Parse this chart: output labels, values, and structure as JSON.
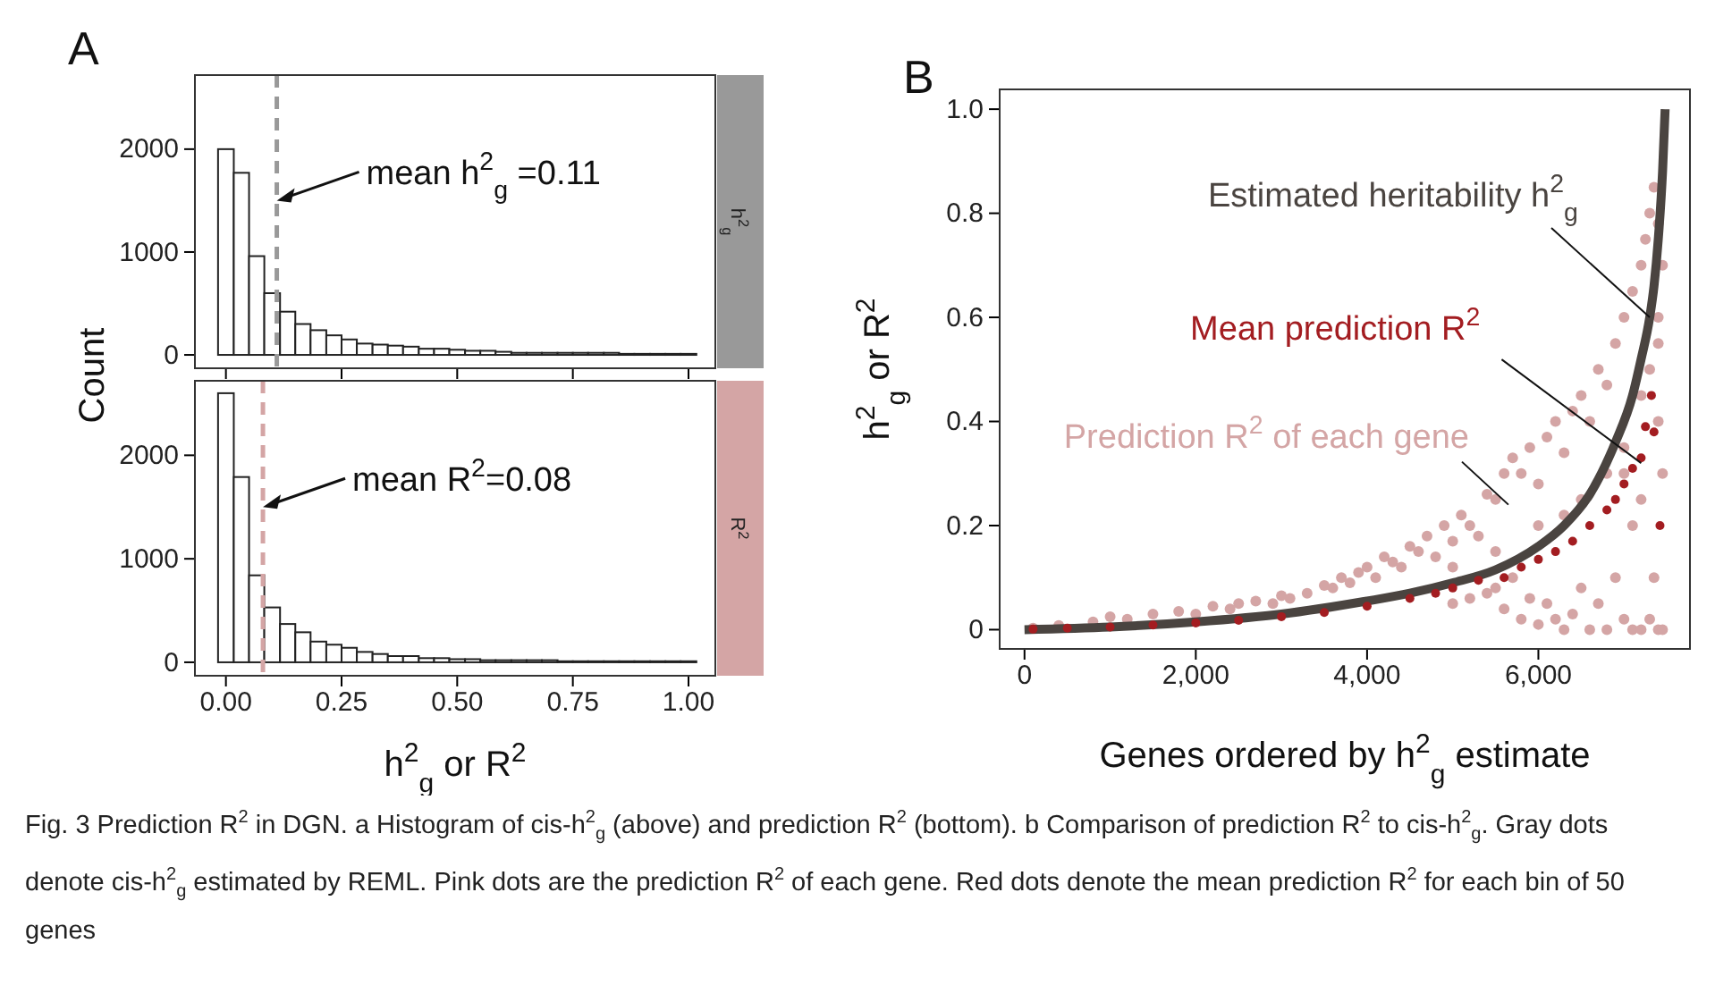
{
  "chart_data": [
    {
      "type": "histogram",
      "ylabel": "Count",
      "tick_labels": "y",
      "grid": false,
      "bins": [
        -0.017,
        0.017,
        0.05,
        0.083,
        0.117,
        0.15,
        0.183,
        0.217,
        0.25,
        0.283,
        0.317,
        0.35,
        0.383,
        0.417,
        0.45,
        0.483,
        0.517,
        0.55,
        0.583,
        0.617,
        0.65,
        0.683,
        0.717,
        0.75,
        0.783,
        0.817,
        0.85,
        0.883,
        0.917,
        0.95,
        0.983,
        1.017
      ],
      "values": [
        2000,
        1770,
        960,
        600,
        420,
        300,
        240,
        190,
        150,
        110,
        100,
        90,
        80,
        60,
        60,
        50,
        40,
        40,
        30,
        20,
        20,
        20,
        20,
        20,
        20,
        20,
        10,
        10,
        10,
        10,
        10
      ],
      "color": "#ffffff",
      "xlim": [
        -0.067,
        1.058
      ],
      "xticks": [
        {
          "value": 0,
          "label": null
        },
        {
          "value": 0.25,
          "label": null
        },
        {
          "value": 0.5,
          "label": null
        },
        {
          "value": 0.75,
          "label": null
        },
        {
          "value": 1,
          "label": null
        }
      ],
      "ylim": [
        -130,
        2720
      ],
      "yticks": [
        0,
        1000,
        2000
      ],
      "ref_lines": [
        {
          "axis": "x",
          "value": 0.11,
          "color": "#999999",
          "line_style": "dashed"
        }
      ],
      "annotations": [
        "A",
        "h$^{2}$$_{g}$",
        {
          "text": "mean h$^{2}$$_{g}$ =0.11",
          "x": 0.11,
          "y": 1500
        }
      ]
    },
    {
      "type": "histogram",
      "xlabel": "h$^{2}$$_{g}$ or R$^{2}$",
      "grid": false,
      "bins": [
        -0.017,
        0.017,
        0.05,
        0.083,
        0.117,
        0.15,
        0.183,
        0.217,
        0.25,
        0.283,
        0.317,
        0.35,
        0.383,
        0.417,
        0.45,
        0.483,
        0.517,
        0.55,
        0.583,
        0.617,
        0.65,
        0.683,
        0.717,
        0.75,
        0.783,
        0.817,
        0.85,
        0.883,
        0.917,
        0.95,
        0.983,
        1.017
      ],
      "values": [
        2600,
        1790,
        840,
        530,
        370,
        290,
        200,
        170,
        140,
        100,
        80,
        60,
        60,
        40,
        40,
        30,
        30,
        20,
        20,
        20,
        20,
        20,
        10,
        10,
        10,
        10,
        10,
        10,
        10,
        10,
        10
      ],
      "color": "#ffffff",
      "xlim": [
        -0.067,
        1.058
      ],
      "xticks": [
        {
          "value": 0,
          "label": "0.00"
        },
        {
          "value": 0.25,
          "label": "0.25"
        },
        {
          "value": 0.5,
          "label": "0.50"
        },
        {
          "value": 0.75,
          "label": "0.75"
        },
        {
          "value": 1,
          "label": "1.00"
        }
      ],
      "ylim": [
        -130,
        2720
      ],
      "yticks": [
        0,
        1000,
        2000
      ],
      "ref_lines": [
        {
          "axis": "x",
          "value": 0.08,
          "color": "#d4a5a5",
          "line_style": "dashed"
        }
      ],
      "annotations": [
        "R$^{2}$",
        {
          "text": "mean R$^{2}$=0.08",
          "x": 0.08,
          "y": 1500
        }
      ]
    },
    {
      "type": "scatter",
      "xlabel": "Genes ordered by h$^{2}$$_{g}$ estimate",
      "ylabel": "h$^{2}$$_{g}$ or R$^{2}$",
      "grid": false,
      "xlim": [
        -290,
        7770
      ],
      "xticks": [
        0,
        {
          "value": 2000,
          "label": "2,000"
        },
        {
          "value": 4000,
          "label": "4,000"
        },
        {
          "value": 6000,
          "label": "6,000"
        }
      ],
      "ylim": [
        -0.037,
        1.038
      ],
      "yticks": [
        0,
        0.2,
        0.4,
        0.6,
        0.8,
        {
          "value": 1,
          "label": "1.0"
        }
      ],
      "series": [
        {
          "type": "scatter",
          "marker": "circle",
          "color": "#d4a5a5",
          "x": [
            100,
            400,
            800,
            1000,
            1200,
            1500,
            1800,
            2000,
            2200,
            2400,
            2500,
            2700,
            2900,
            3000,
            3100,
            3300,
            3500,
            3600,
            3700,
            3800,
            3900,
            4000,
            4100,
            4200,
            4300,
            4400,
            4500,
            4600,
            4700,
            4800,
            4900,
            5000,
            5000,
            5100,
            5200,
            5200,
            5300,
            5400,
            5400,
            5500,
            5500,
            5600,
            5600,
            5700,
            5700,
            5800,
            5800,
            5900,
            5900,
            6000,
            6000,
            6100,
            6100,
            6200,
            6200,
            6300,
            6300,
            6400,
            6400,
            6500,
            6500,
            6600,
            6600,
            6700,
            6700,
            6800,
            6800,
            6900,
            6900,
            7000,
            7000,
            7000,
            7100,
            7100,
            7100,
            7200,
            7200,
            7200,
            7250,
            7300,
            7300,
            7300,
            7350,
            7350,
            7400,
            7400,
            7400,
            7450,
            7450,
            7450,
            5000,
            5500,
            6000,
            6500,
            7000,
            7400,
            6300,
            6800,
            7200,
            7400
          ],
          "values": [
            0.003,
            0.008,
            0.015,
            0.025,
            0.02,
            0.03,
            0.035,
            0.03,
            0.045,
            0.04,
            0.05,
            0.055,
            0.05,
            0.065,
            0.06,
            0.07,
            0.085,
            0.08,
            0.1,
            0.09,
            0.11,
            0.12,
            0.1,
            0.14,
            0.13,
            0.12,
            0.16,
            0.15,
            0.18,
            0.14,
            0.2,
            0.17,
            0.05,
            0.22,
            0.2,
            0.06,
            0.18,
            0.26,
            0.07,
            0.25,
            0.08,
            0.3,
            0.04,
            0.33,
            0.1,
            0.3,
            0.02,
            0.35,
            0.06,
            0.28,
            0.01,
            0.37,
            0.05,
            0.4,
            0.02,
            0.34,
            0.0,
            0.42,
            0.03,
            0.45,
            0.08,
            0.4,
            0.0,
            0.5,
            0.05,
            0.47,
            0.0,
            0.55,
            0.1,
            0.6,
            0.02,
            0.3,
            0.65,
            0.0,
            0.2,
            0.7,
            0.0,
            0.45,
            0.75,
            0.8,
            0.02,
            0.5,
            0.85,
            0.1,
            0.78,
            0.0,
            0.4,
            0.7,
            0.0,
            0.3,
            0.12,
            0.15,
            0.2,
            0.25,
            0.35,
            0.6,
            0.22,
            0.3,
            0.25,
            0.55
          ]
        },
        {
          "type": "line",
          "color": "#4a4440",
          "x": [
            0,
            1000,
            2000,
            3000,
            4000,
            4500,
            5000,
            5500,
            6000,
            6300,
            6600,
            6900,
            7100,
            7200,
            7300,
            7350,
            7400,
            7450,
            7480
          ],
          "values": [
            0,
            0.005,
            0.015,
            0.03,
            0.055,
            0.07,
            0.09,
            0.115,
            0.16,
            0.2,
            0.26,
            0.36,
            0.45,
            0.52,
            0.6,
            0.66,
            0.75,
            0.88,
            1.0
          ]
        },
        {
          "type": "scatter",
          "marker": "circle",
          "color": "#a31d21",
          "x": [
            100,
            500,
            1000,
            1500,
            2000,
            2500,
            3000,
            3500,
            4000,
            4500,
            4800,
            5000,
            5300,
            5600,
            5800,
            6000,
            6200,
            6400,
            6600,
            6800,
            6900,
            7000,
            7100,
            7200,
            7250,
            7320,
            7350,
            7420
          ],
          "values": [
            0.001,
            0.003,
            0.005,
            0.009,
            0.013,
            0.018,
            0.025,
            0.033,
            0.045,
            0.06,
            0.07,
            0.08,
            0.095,
            0.1,
            0.12,
            0.135,
            0.15,
            0.17,
            0.2,
            0.23,
            0.25,
            0.28,
            0.31,
            0.33,
            0.39,
            0.45,
            0.38,
            0.2
          ]
        }
      ],
      "annotations": [
        "B",
        "Prediction R$^{2}$ of each gene",
        {
          "text": "Estimated heritability h$^{2}$$_{g}$",
          "x": 7300,
          "y": 0.6
        },
        {
          "text": "Mean prediction R$^{2}$",
          "x": 7200,
          "y": 0.32
        },
        "Fig. 3 Prediction R$^{2}$ in DGN. a Histogram of cis-h$^{2}$$_{g}$ (above) and prediction R$^{2}$ (bottom). b Comparison of prediction R$^{2}$ to cis-h$^{2}$$_{g}$. Gray dots denote cis-h$^{2}$$_{g}$ estimated by REML. Pink dots are the prediction R$^{2}$ of each gene. Red dots denote the mean prediction R$^{2}$ for each bin of 50 genes"
      ]
    }
  ]
}
